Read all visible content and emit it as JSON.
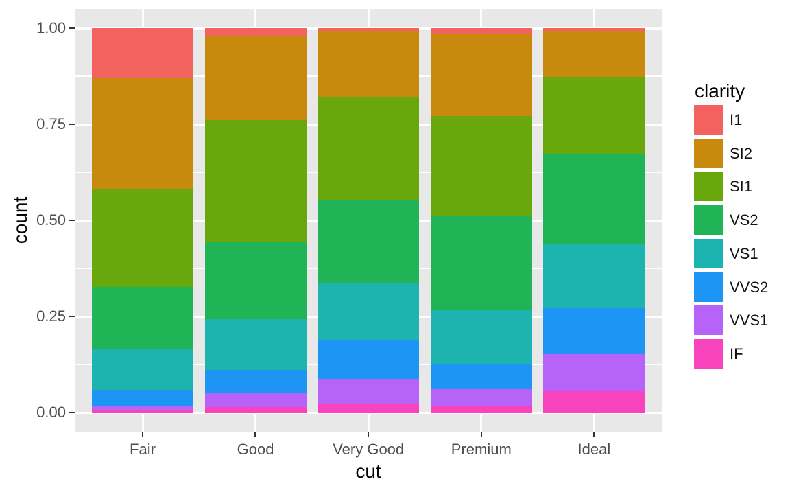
{
  "figure": {
    "background": "#FFFFFF",
    "panel_bg": "#E8E8E8",
    "grid_color": "#FFFFFF",
    "tick_color": "#333333",
    "tick_label_color": "#4D4D4D",
    "title_color": "#000000"
  },
  "chart_data": {
    "type": "bar",
    "subtype": "stacked_filled_proportion",
    "title": "",
    "xlabel": "cut",
    "ylabel": "count",
    "legend_title": "clarity",
    "legend_position": "right",
    "grid": true,
    "ylim": [
      0,
      1
    ],
    "categories": [
      "Fair",
      "Good",
      "Very Good",
      "Premium",
      "Ideal"
    ],
    "stack_order_top_to_bottom": [
      "I1",
      "SI2",
      "SI1",
      "VS2",
      "VS1",
      "VVS2",
      "VVS1",
      "IF"
    ],
    "series": [
      {
        "name": "I1",
        "color": "#F3625F",
        "values": [
          0.1304,
          0.0196,
          0.007,
          0.0149,
          0.0068
        ]
      },
      {
        "name": "SI2",
        "color": "#C78A0D",
        "values": [
          0.2894,
          0.2203,
          0.1738,
          0.2138,
          0.1206
        ]
      },
      {
        "name": "SI1",
        "color": "#69A80D",
        "values": [
          0.2534,
          0.318,
          0.2682,
          0.2592,
          0.1987
        ]
      },
      {
        "name": "VS2",
        "color": "#20B456",
        "values": [
          0.1621,
          0.1993,
          0.2144,
          0.2434,
          0.2353
        ]
      },
      {
        "name": "VS1",
        "color": "#1DB3AE",
        "values": [
          0.1056,
          0.1321,
          0.1469,
          0.1442,
          0.1665
        ]
      },
      {
        "name": "VVS2",
        "color": "#1D95F4",
        "values": [
          0.0429,
          0.0583,
          0.1022,
          0.0631,
          0.1209
        ]
      },
      {
        "name": "VVS1",
        "color": "#B763F7",
        "values": [
          0.0106,
          0.0379,
          0.0653,
          0.0447,
          0.095
        ]
      },
      {
        "name": "IF",
        "color": "#F943BD",
        "values": [
          0.0056,
          0.0145,
          0.0222,
          0.0167,
          0.0562
        ]
      }
    ],
    "y_ticks": [
      {
        "label": "1.00",
        "value": 1.0
      },
      {
        "label": "0.75",
        "value": 0.75
      },
      {
        "label": "0.50",
        "value": 0.5
      },
      {
        "label": "0.25",
        "value": 0.25
      },
      {
        "label": "0.00",
        "value": 0.0
      }
    ],
    "y_minor_ticks": [
      0.875,
      0.625,
      0.375,
      0.125
    ]
  }
}
